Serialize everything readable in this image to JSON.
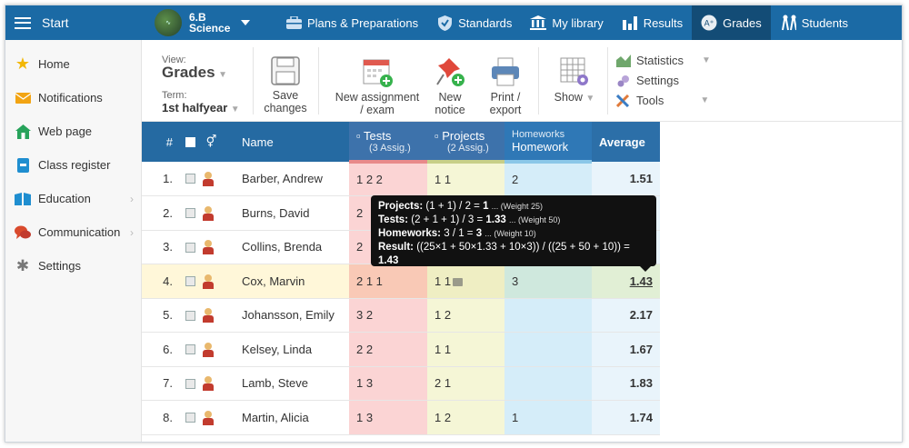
{
  "nav": {
    "start_label": "Start",
    "class_name": "6.B",
    "class_subject": "Science",
    "items": [
      {
        "label": "Plans & Preparations",
        "icon": "briefcase-icon"
      },
      {
        "label": "Standards",
        "icon": "shield-icon"
      },
      {
        "label": "My library",
        "icon": "library-icon"
      },
      {
        "label": "Results",
        "icon": "bar-chart-icon"
      },
      {
        "label": "Grades",
        "icon": "grades-icon",
        "active": true
      },
      {
        "label": "Students",
        "icon": "students-icon"
      }
    ]
  },
  "sidebar": {
    "items": [
      {
        "label": "Home",
        "icon": "star-icon",
        "color": "#f2b705"
      },
      {
        "label": "Notifications",
        "icon": "envelope-icon",
        "color": "#f2a413"
      },
      {
        "label": "Web page",
        "icon": "house-icon",
        "color": "#27a35b"
      },
      {
        "label": "Class register",
        "icon": "register-icon",
        "color": "#1f8ed0"
      },
      {
        "label": "Education",
        "icon": "book-icon",
        "color": "#1f8ed0"
      },
      {
        "label": "Communication",
        "icon": "chat-icon",
        "color": "#d94a2d"
      },
      {
        "label": "Settings",
        "icon": "gear-icon",
        "color": "#777777"
      }
    ]
  },
  "toolbar": {
    "view_label": "View:",
    "view_value": "Grades",
    "term_label": "Term:",
    "term_value": "1st halfyear",
    "save_label1": "Save",
    "save_label2": "changes",
    "newassign_label1": "New assignment",
    "newassign_label2": "/ exam",
    "newnotice_label1": "New",
    "newnotice_label2": "notice",
    "print_label1": "Print /",
    "print_label2": "export",
    "show_label": "Show",
    "statistics_label": "Statistics",
    "settings_label": "Settings",
    "tools_label": "Tools"
  },
  "table": {
    "headers": {
      "num": "#",
      "name": "Name",
      "tests_title": "Tests",
      "tests_sub": "(3 Assig.)",
      "projects_title": "Projects",
      "projects_sub": "(2 Assig.)",
      "homeworks_sub": "Homeworks",
      "homeworks_title": "Homework",
      "average": "Average"
    },
    "rows": [
      {
        "num": "1.",
        "name": "Barber, Andrew",
        "tests": "1 2 2",
        "projects": "1 1",
        "homework": "2",
        "average": "1.51"
      },
      {
        "num": "2.",
        "name": "Burns, David",
        "tests": "2",
        "projects": "",
        "homework": "",
        "average": ""
      },
      {
        "num": "3.",
        "name": "Collins, Brenda",
        "tests": "2",
        "projects": "",
        "homework": "",
        "average": ""
      },
      {
        "num": "4.",
        "name": "Cox, Marvin",
        "tests": "2 1 1",
        "projects": "1 1",
        "homework": "3",
        "average": "1.43",
        "highlight": true
      },
      {
        "num": "5.",
        "name": "Johansson, Emily",
        "tests": "3 2",
        "projects": "1 2",
        "homework": "",
        "average": "2.17"
      },
      {
        "num": "6.",
        "name": "Kelsey, Linda",
        "tests": "2 2",
        "projects": "1 1",
        "homework": "",
        "average": "1.67"
      },
      {
        "num": "7.",
        "name": "Lamb, Steve",
        "tests": "1 3",
        "projects": "2 1",
        "homework": "",
        "average": "1.83"
      },
      {
        "num": "8.",
        "name": "Martin, Alicia",
        "tests": "1 3",
        "projects": "1 2",
        "homework": "1",
        "average": "1.74"
      }
    ]
  },
  "tooltip": {
    "projects_label": "Projects:",
    "projects_formula": "(1 + 1) / 2 =",
    "projects_result": "1",
    "projects_weight": "... (Weight 25)",
    "tests_label": "Tests:",
    "tests_formula": "(2 + 1 + 1) / 3 =",
    "tests_result": "1.33",
    "tests_weight": "... (Weight 50)",
    "homeworks_label": "Homeworks:",
    "homeworks_formula": "3 / 1 =",
    "homeworks_result": "3",
    "homeworks_weight": "... (Weight 10)",
    "result_label": "Result:",
    "result_formula": "((25×1 + 50×1.33 + 10×3)) / ((25 + 50 + 10)) =",
    "result_value": "1.43"
  }
}
